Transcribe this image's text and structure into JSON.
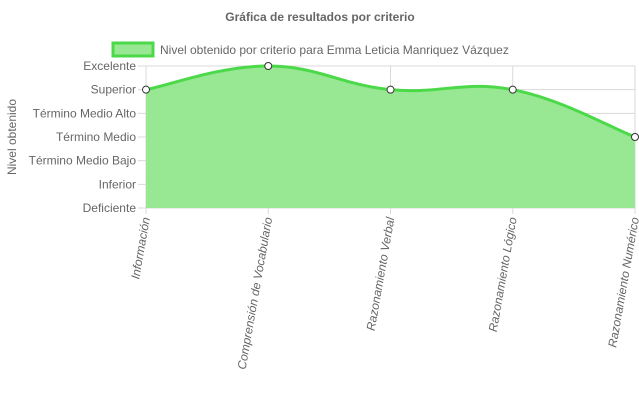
{
  "chart_data": {
    "type": "area",
    "title": "Gráfica de resultados por criterio",
    "ylabel": "Nivel obtenido",
    "xlabel": "",
    "y_levels": [
      "Deficiente",
      "Inferior",
      "Término Medio Bajo",
      "Término Medio",
      "Término Medio Alto",
      "Superior",
      "Excelente"
    ],
    "ylim": [
      0,
      6
    ],
    "categories": [
      "Información",
      "Comprensión de Vocabulario",
      "Razonamiento Verbal",
      "Razonamiento Lógico",
      "Razonamiento Numérico"
    ],
    "series": [
      {
        "name": "Nivel obtenido por criterio para Emma Leticia  Manriquez Vázquez",
        "values": [
          5,
          6,
          5,
          5,
          3
        ],
        "value_labels": [
          "Superior",
          "Excelente",
          "Superior",
          "Superior",
          "Término Medio"
        ]
      }
    ],
    "grid": true,
    "legend_position": "top",
    "colors": {
      "fill": "#98e793",
      "line": "#4cd949",
      "point_fill": "#ffffff",
      "point_stroke": "#333333",
      "grid": "#d9d9d9",
      "text": "#666666"
    }
  }
}
